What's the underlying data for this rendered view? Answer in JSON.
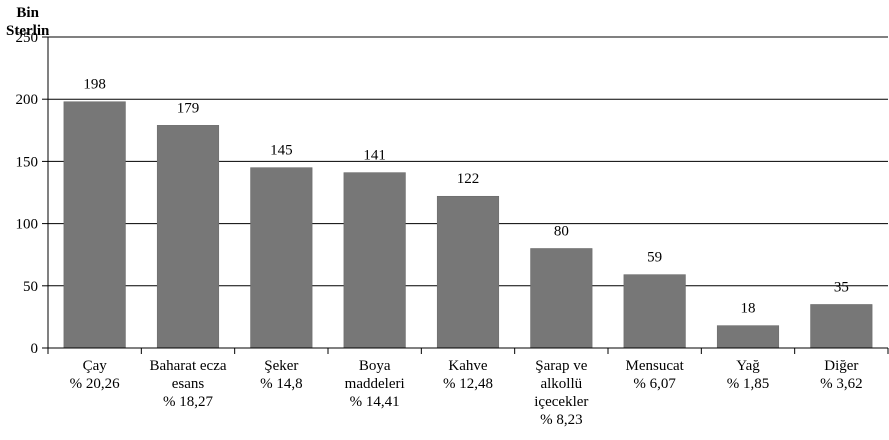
{
  "chart_data": {
    "type": "bar",
    "y_unit_label_line1": "Bin",
    "y_unit_label_line2": "Sterlin",
    "ylim": [
      0,
      250
    ],
    "yticks": [
      0,
      50,
      100,
      150,
      200,
      250
    ],
    "grid": true,
    "bar_color": "#777777",
    "categories": [
      [
        "Çay",
        "% 20,26"
      ],
      [
        "Baharat ecza",
        "esans",
        "% 18,27"
      ],
      [
        "Şeker",
        "% 14,8"
      ],
      [
        "Boya",
        "maddeleri",
        "% 14,41"
      ],
      [
        "Kahve",
        "% 12,48"
      ],
      [
        "Şarap ve",
        "alkollü",
        "içecekler",
        "% 8,23"
      ],
      [
        "Mensucat",
        "% 6,07"
      ],
      [
        "Yağ",
        "% 1,85"
      ],
      [
        "Diğer",
        "% 3,62"
      ]
    ],
    "values": [
      198,
      179,
      145,
      141,
      122,
      80,
      59,
      18,
      35
    ],
    "value_labels": [
      "198",
      "179",
      "145",
      "141",
      "122",
      "80",
      "59",
      "18",
      "35"
    ]
  }
}
